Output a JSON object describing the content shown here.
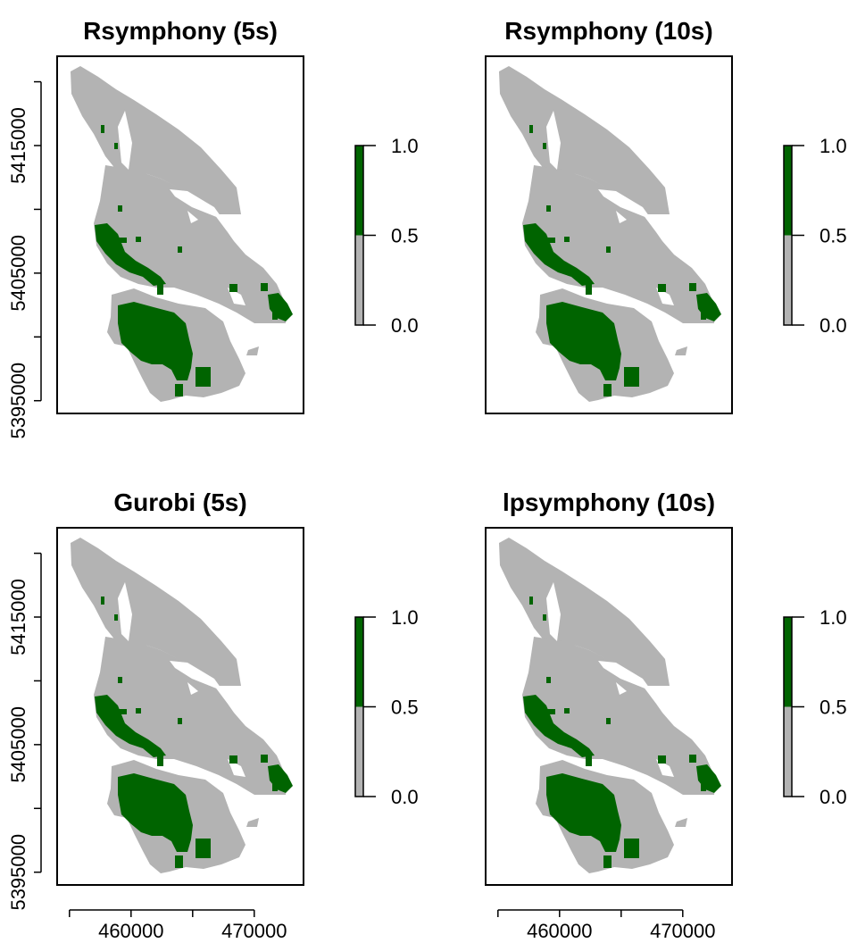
{
  "figure": {
    "colors": {
      "unselected": "#b3b3b3",
      "selected": "#006400",
      "frame": "#000000",
      "background": "#ffffff"
    }
  },
  "chart_data": [
    {
      "type": "heatmap",
      "title": "Rsymphony (5s)",
      "xlim": [
        454000,
        474000
      ],
      "ylim": [
        5394000,
        5422000
      ],
      "y_ticks": [
        5395000,
        5400000,
        5405000,
        5410000,
        5415000,
        5420000
      ],
      "y_tick_labels": [
        "5395000",
        "",
        "5405000",
        "",
        "5415000",
        ""
      ],
      "x_ticks": [],
      "x_tick_labels": [],
      "legend": {
        "range": [
          0,
          1
        ],
        "ticks": [
          0.0,
          0.5,
          1.0
        ],
        "tick_labels": [
          "0.0",
          "0.5",
          "1.0"
        ],
        "bins": [
          {
            "from": 0,
            "to": 0.5,
            "color": "#b3b3b3"
          },
          {
            "from": 0.5,
            "to": 1,
            "color": "#006400"
          }
        ]
      }
    },
    {
      "type": "heatmap",
      "title": "Rsymphony (10s)",
      "xlim": [
        454000,
        474000
      ],
      "ylim": [
        5394000,
        5422000
      ],
      "y_ticks": [],
      "y_tick_labels": [],
      "x_ticks": [],
      "x_tick_labels": [],
      "legend": {
        "range": [
          0,
          1
        ],
        "ticks": [
          0.0,
          0.5,
          1.0
        ],
        "tick_labels": [
          "0.0",
          "0.5",
          "1.0"
        ],
        "bins": [
          {
            "from": 0,
            "to": 0.5,
            "color": "#b3b3b3"
          },
          {
            "from": 0.5,
            "to": 1,
            "color": "#006400"
          }
        ]
      }
    },
    {
      "type": "heatmap",
      "title": "Gurobi (5s)",
      "xlim": [
        454000,
        474000
      ],
      "ylim": [
        5394000,
        5422000
      ],
      "y_ticks": [
        5395000,
        5400000,
        5405000,
        5410000,
        5415000,
        5420000
      ],
      "y_tick_labels": [
        "5395000",
        "",
        "5405000",
        "",
        "5415000",
        ""
      ],
      "x_ticks": [
        455000,
        460000,
        465000,
        470000
      ],
      "x_tick_labels": [
        "",
        "460000",
        "",
        "470000"
      ],
      "legend": {
        "range": [
          0,
          1
        ],
        "ticks": [
          0.0,
          0.5,
          1.0
        ],
        "tick_labels": [
          "0.0",
          "0.5",
          "1.0"
        ],
        "bins": [
          {
            "from": 0,
            "to": 0.5,
            "color": "#b3b3b3"
          },
          {
            "from": 0.5,
            "to": 1,
            "color": "#006400"
          }
        ]
      }
    },
    {
      "type": "heatmap",
      "title": "lpsymphony (10s)",
      "xlim": [
        454000,
        474000
      ],
      "ylim": [
        5394000,
        5422000
      ],
      "y_ticks": [],
      "y_tick_labels": [],
      "x_ticks": [
        455000,
        460000,
        465000,
        470000
      ],
      "x_tick_labels": [
        "",
        "460000",
        "",
        "470000"
      ],
      "legend": {
        "range": [
          0,
          1
        ],
        "ticks": [
          0.0,
          0.5,
          1.0
        ],
        "tick_labels": [
          "0.0",
          "0.5",
          "1.0"
        ],
        "bins": [
          {
            "from": 0,
            "to": 0.5,
            "color": "#b3b3b3"
          },
          {
            "from": 0.5,
            "to": 1,
            "color": "#006400"
          }
        ]
      }
    }
  ]
}
